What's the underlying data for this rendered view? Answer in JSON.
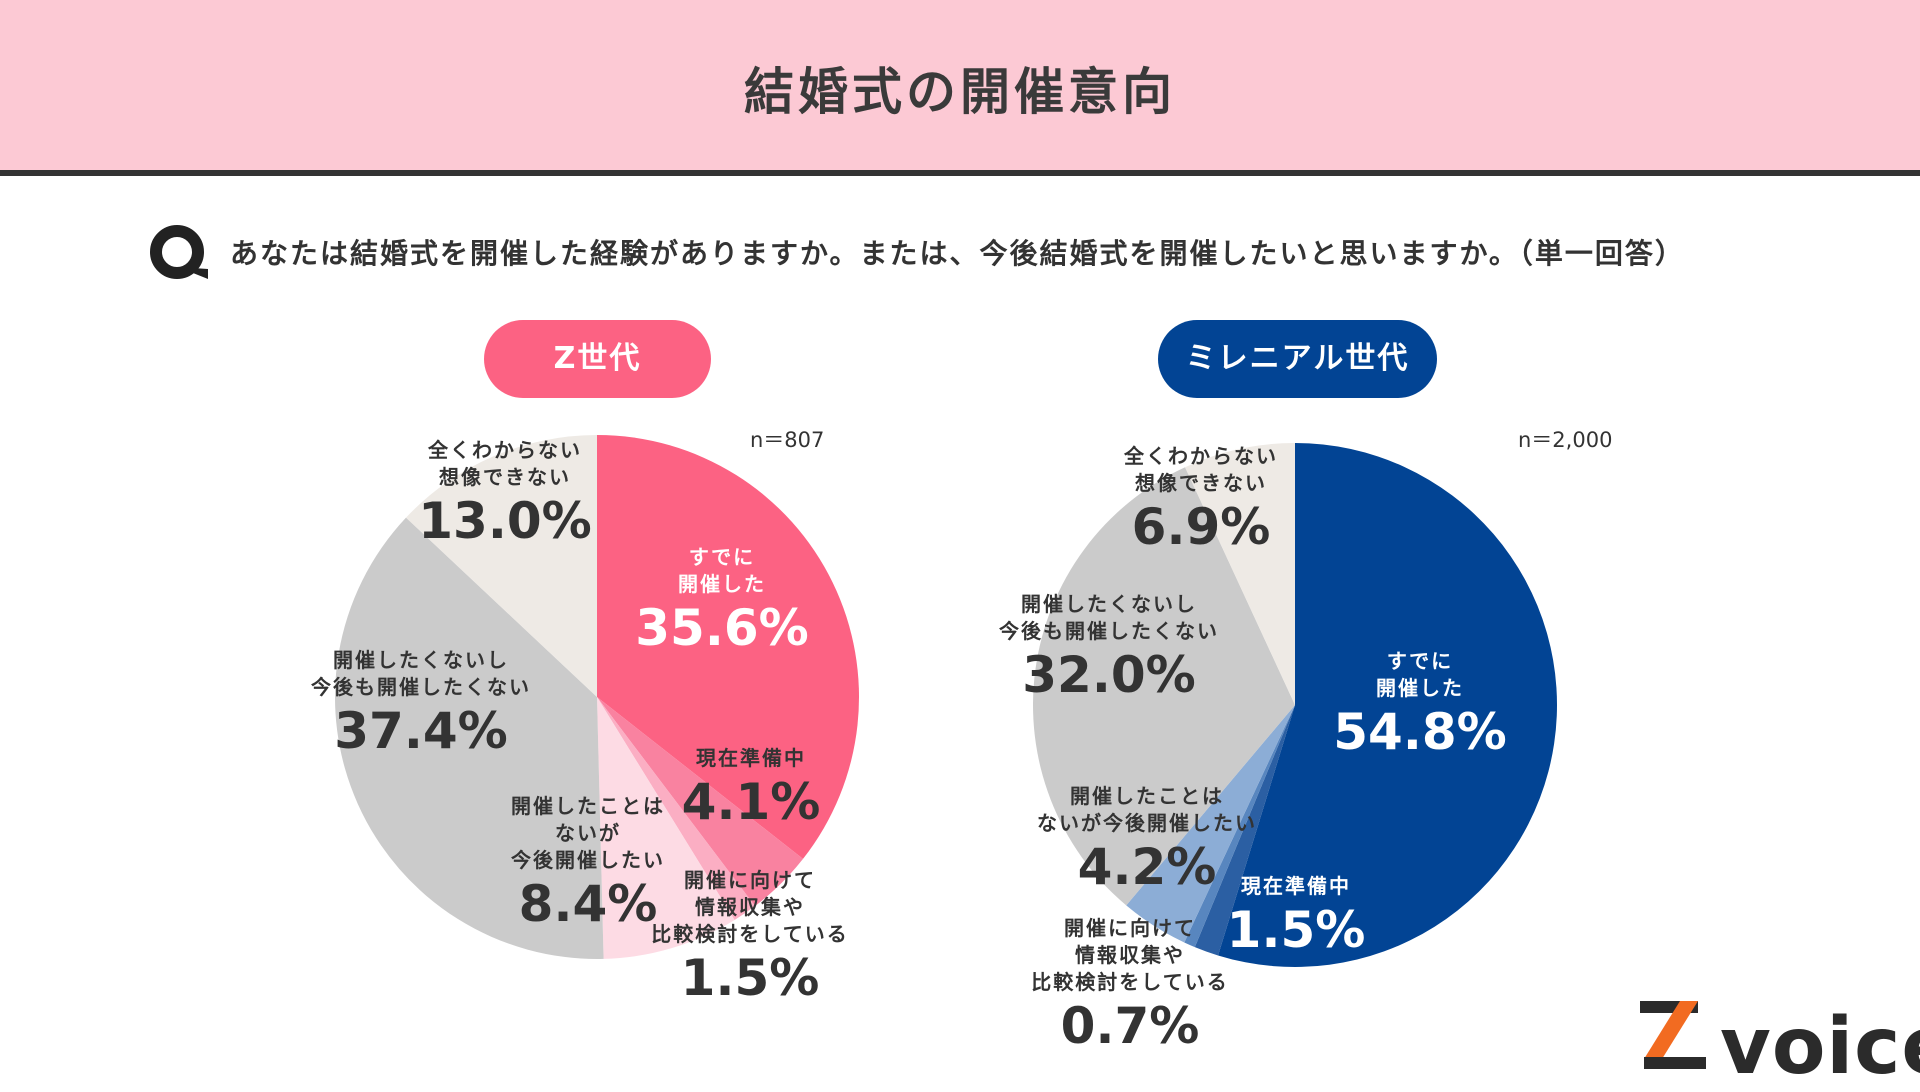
{
  "header": {
    "title": "結婚式の開催意向"
  },
  "question": {
    "text": "あなたは結婚式を開催した経験がありますか。または、今後結婚式を開催したいと思いますか。（単一回答）"
  },
  "brand": {
    "logo_text": "voice"
  },
  "colors": {
    "z": "#fc6283",
    "m": "#024494"
  },
  "chart_data": [
    {
      "type": "pie",
      "title": "Z世代",
      "sample": "n＝807",
      "start": "12 o'clock, clockwise",
      "slices": [
        {
          "label_lines": [
            "すでに",
            "開催した"
          ],
          "value": 35.6,
          "value_label": "35.6%",
          "color": "#fc6283"
        },
        {
          "label_lines": [
            "現在準備中"
          ],
          "value": 4.1,
          "value_label": "4.1%",
          "color": "#f982a0"
        },
        {
          "label_lines": [
            "開催に向けて",
            "情報収集や",
            "比較検討をしている"
          ],
          "value": 1.5,
          "value_label": "1.5%",
          "color": "#fbaec3"
        },
        {
          "label_lines": [
            "開催したことは",
            "ないが",
            "今後開催したい"
          ],
          "value": 8.4,
          "value_label": "8.4%",
          "color": "#fddbe4"
        },
        {
          "label_lines": [
            "開催したくないし",
            "今後も開催したくない"
          ],
          "value": 37.4,
          "value_label": "37.4%",
          "color": "#cbcbcb"
        },
        {
          "label_lines": [
            "全くわからない",
            "想像できない"
          ],
          "value": 13.0,
          "value_label": "13.0%",
          "color": "#eeeae5"
        }
      ]
    },
    {
      "type": "pie",
      "title": "ミレニアル世代",
      "sample": "n＝2,000",
      "start": "12 o'clock, clockwise",
      "slices": [
        {
          "label_lines": [
            "すでに",
            "開催した"
          ],
          "value": 54.8,
          "value_label": "54.8%",
          "color": "#024494"
        },
        {
          "label_lines": [
            "現在準備中"
          ],
          "value": 1.5,
          "value_label": "1.5%",
          "color": "#2b5fa3"
        },
        {
          "label_lines": [
            "開催に向けて",
            "情報収集や",
            "比較検討をしている"
          ],
          "value": 0.7,
          "value_label": "0.7%",
          "color": "#5886bf"
        },
        {
          "label_lines": [
            "開催したことは",
            "ないが今後開催したい"
          ],
          "value": 4.2,
          "value_label": "4.2%",
          "color": "#8cadd6"
        },
        {
          "label_lines": [
            "開催したくないし",
            "今後も開催したくない"
          ],
          "value": 32.0,
          "value_label": "32.0%",
          "color": "#cbcbcb"
        },
        {
          "label_lines": [
            "全くわからない",
            "想像できない"
          ],
          "value": 6.9,
          "value_label": "6.9%",
          "color": "#eeeae5"
        }
      ]
    }
  ]
}
